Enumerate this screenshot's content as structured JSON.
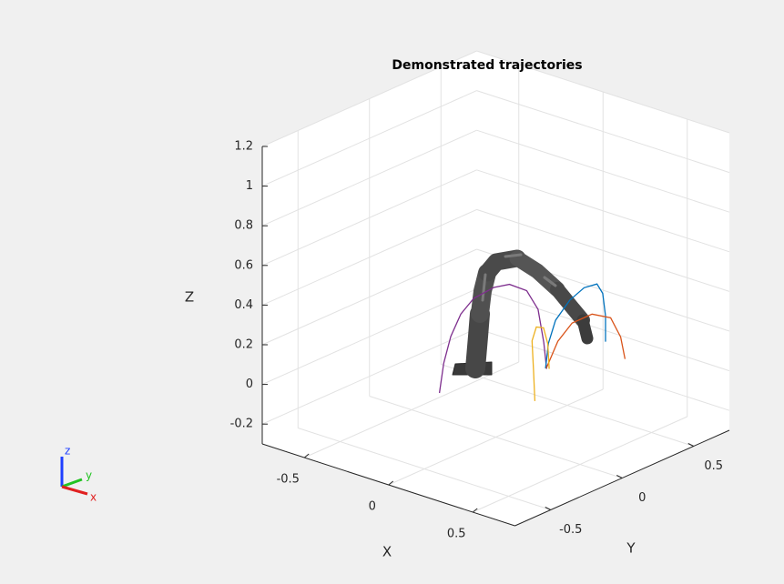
{
  "chart_data": {
    "type": "line3d",
    "title": "Demonstrated trajectories",
    "xlabel": "X",
    "ylabel": "Y",
    "zlabel": "Z",
    "xlim": [
      -0.75,
      0.75
    ],
    "ylim": [
      -0.75,
      0.75
    ],
    "zlim": [
      -0.3,
      1.2
    ],
    "xticks": [
      -0.5,
      0,
      0.5
    ],
    "yticks": [
      -0.5,
      0,
      0.5
    ],
    "zticks": [
      -0.2,
      0,
      0.2,
      0.4,
      0.6,
      0.8,
      1,
      1.2
    ],
    "grid": true,
    "series": [
      {
        "color": "#7e2f8e",
        "x": [
          0.2,
          0.2,
          0.2,
          0.2,
          0.2,
          0.2,
          0.2,
          0.2,
          0.2,
          0.2,
          0.2
        ],
        "y": [
          -0.63,
          -0.6,
          -0.55,
          -0.48,
          -0.39,
          -0.25,
          -0.14,
          -0.02,
          0.06,
          0.1,
          0.12
        ],
        "z": [
          0.18,
          0.32,
          0.44,
          0.53,
          0.58,
          0.59,
          0.57,
          0.5,
          0.38,
          0.2,
          0.06
        ]
      },
      {
        "color": "#0072bd",
        "x": [
          0.1,
          0.1,
          0.1,
          0.1,
          0.1,
          0.1,
          0.1,
          0.1,
          0.1
        ],
        "y": [
          0.23,
          0.25,
          0.3,
          0.4,
          0.5,
          0.59,
          0.63,
          0.65,
          0.65
        ],
        "z": [
          0.0,
          0.12,
          0.22,
          0.29,
          0.32,
          0.31,
          0.25,
          0.13,
          0.0
        ]
      },
      {
        "color": "#d95319",
        "x": [
          0.3,
          0.3,
          0.3,
          0.3,
          0.3,
          0.3,
          0.3
        ],
        "y": [
          0,
          0.08,
          0.18,
          0.32,
          0.45,
          0.52,
          0.55
        ],
        "z": [
          0.13,
          0.24,
          0.3,
          0.3,
          0.24,
          0.12,
          0.0
        ]
      },
      {
        "color": "#edb120",
        "x": [
          0.3,
          0.3,
          0.3,
          0.3,
          0.3,
          0.3,
          0.3
        ],
        "y": [
          -0.08,
          -0.09,
          -0.1,
          -0.07,
          -0.02,
          0.01,
          0.02
        ],
        "z": [
          -0.01,
          0.15,
          0.3,
          0.36,
          0.34,
          0.25,
          0.12
        ]
      }
    ]
  },
  "triad": {
    "x": "x",
    "y": "y",
    "z": "z"
  }
}
